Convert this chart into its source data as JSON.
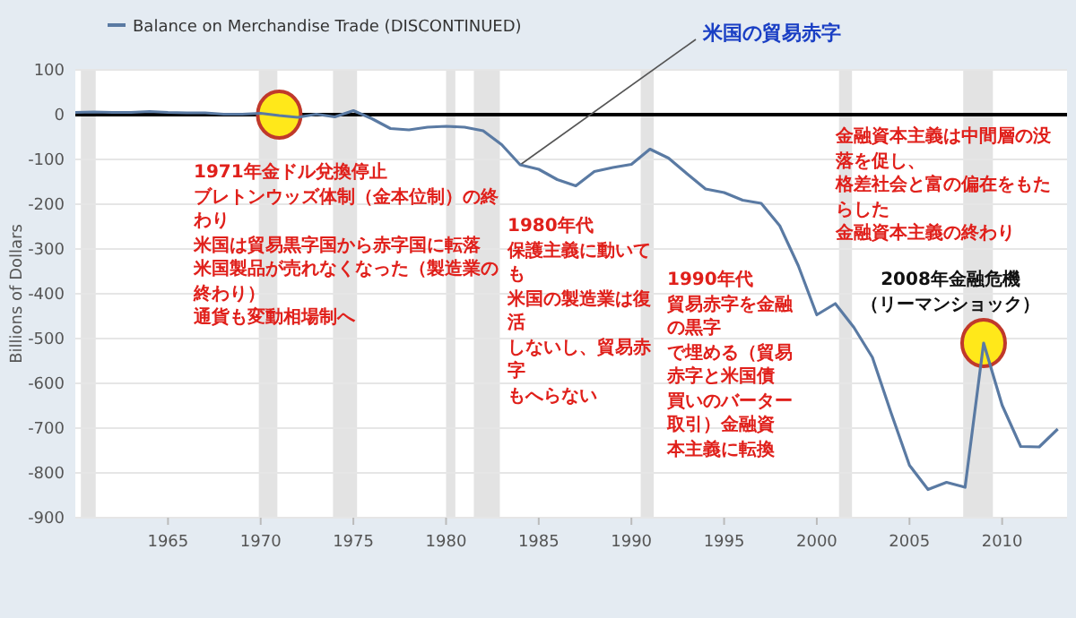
{
  "chart_data": {
    "type": "line",
    "ylabel": "Billions of Dollars",
    "legend": "top left",
    "x": [
      1960,
      1961,
      1962,
      1963,
      1964,
      1965,
      1966,
      1967,
      1968,
      1969,
      1970,
      1971,
      1972,
      1973,
      1974,
      1975,
      1976,
      1977,
      1978,
      1979,
      1980,
      1981,
      1982,
      1983,
      1984,
      1985,
      1986,
      1987,
      1988,
      1989,
      1990,
      1991,
      1992,
      1993,
      1994,
      1995,
      1996,
      1997,
      1998,
      1999,
      2000,
      2001,
      2002,
      2003,
      2004,
      2005,
      2006,
      2007,
      2008,
      2009,
      2010,
      2011,
      2012,
      2013
    ],
    "series": [
      {
        "name": "Balance on Merchandise Trade (DISCONTINUED)",
        "color": "#5a7aa3",
        "values": [
          5,
          6,
          5,
          5,
          7,
          5,
          4,
          4,
          1,
          1,
          3,
          -2,
          -6,
          1,
          -5,
          9,
          -9,
          -31,
          -34,
          -28,
          -26,
          -28,
          -36,
          -67,
          -112,
          -122,
          -145,
          -159,
          -127,
          -118,
          -111,
          -77,
          -97,
          -132,
          -166,
          -174,
          -191,
          -198,
          -248,
          -337,
          -447,
          -422,
          -475,
          -542,
          -665,
          -783,
          -837,
          -821,
          -832,
          -510,
          -649,
          -741,
          -742,
          -702
        ]
      }
    ],
    "xlim": [
      1960,
      2013.5
    ],
    "ylim": [
      -900,
      100
    ],
    "xticks": [
      1965,
      1970,
      1975,
      1980,
      1985,
      1990,
      1995,
      2000,
      2005,
      2010
    ],
    "yticks": [
      -900,
      -800,
      -700,
      -600,
      -500,
      -400,
      -300,
      -200,
      -100,
      0,
      100
    ],
    "grid": "y",
    "ref_lines": [
      {
        "axis": "y",
        "value": 0,
        "color": "#000000"
      }
    ],
    "bands": [
      {
        "axis": "x",
        "from": 1960.3,
        "to": 1961.1,
        "color": "#e3e3e3"
      },
      {
        "axis": "x",
        "from": 1969.9,
        "to": 1970.9,
        "color": "#e3e3e3"
      },
      {
        "axis": "x",
        "from": 1973.9,
        "to": 1975.2,
        "color": "#e3e3e3"
      },
      {
        "axis": "x",
        "from": 1980.0,
        "to": 1980.5,
        "color": "#e3e3e3"
      },
      {
        "axis": "x",
        "from": 1981.5,
        "to": 1982.9,
        "color": "#e3e3e3"
      },
      {
        "axis": "x",
        "from": 1990.5,
        "to": 1991.2,
        "color": "#e3e3e3"
      },
      {
        "axis": "x",
        "from": 2001.2,
        "to": 2001.9,
        "color": "#e3e3e3"
      },
      {
        "axis": "x",
        "from": 2007.9,
        "to": 2009.5,
        "color": "#e3e3e3"
      }
    ],
    "annotations": [
      {
        "text": "米国の貿易赤字",
        "x": 1984,
        "y": -112
      },
      {
        "text": "1971年金ドル兌換停止",
        "x": 1971,
        "y": 0
      },
      "ブレトンウッズ体制（金本位制）の終わり",
      "米国は貿易黒字国から赤字国に転落",
      "米国製品が売れなくなった（製造業の終わり）",
      "通貨も変動相場制へ",
      "1980年代",
      "保護主義に動いても",
      "米国の製造業は復活",
      "しないし、貿易赤字",
      "もへらない",
      "1990年代",
      "貿易赤字を金融の黒字",
      "で埋める（貿易赤字と米国債",
      "買いのバーター取引）金融資",
      "本主義に転換",
      "金融資本主義は中間層の没落を促し、",
      "格差社会と富の偏在をもたらした",
      "金融資本主義の終わり",
      "2008年金融危機",
      {
        "text": "（リーマンショック）",
        "x": 2009,
        "y": -510
      }
    ]
  }
}
